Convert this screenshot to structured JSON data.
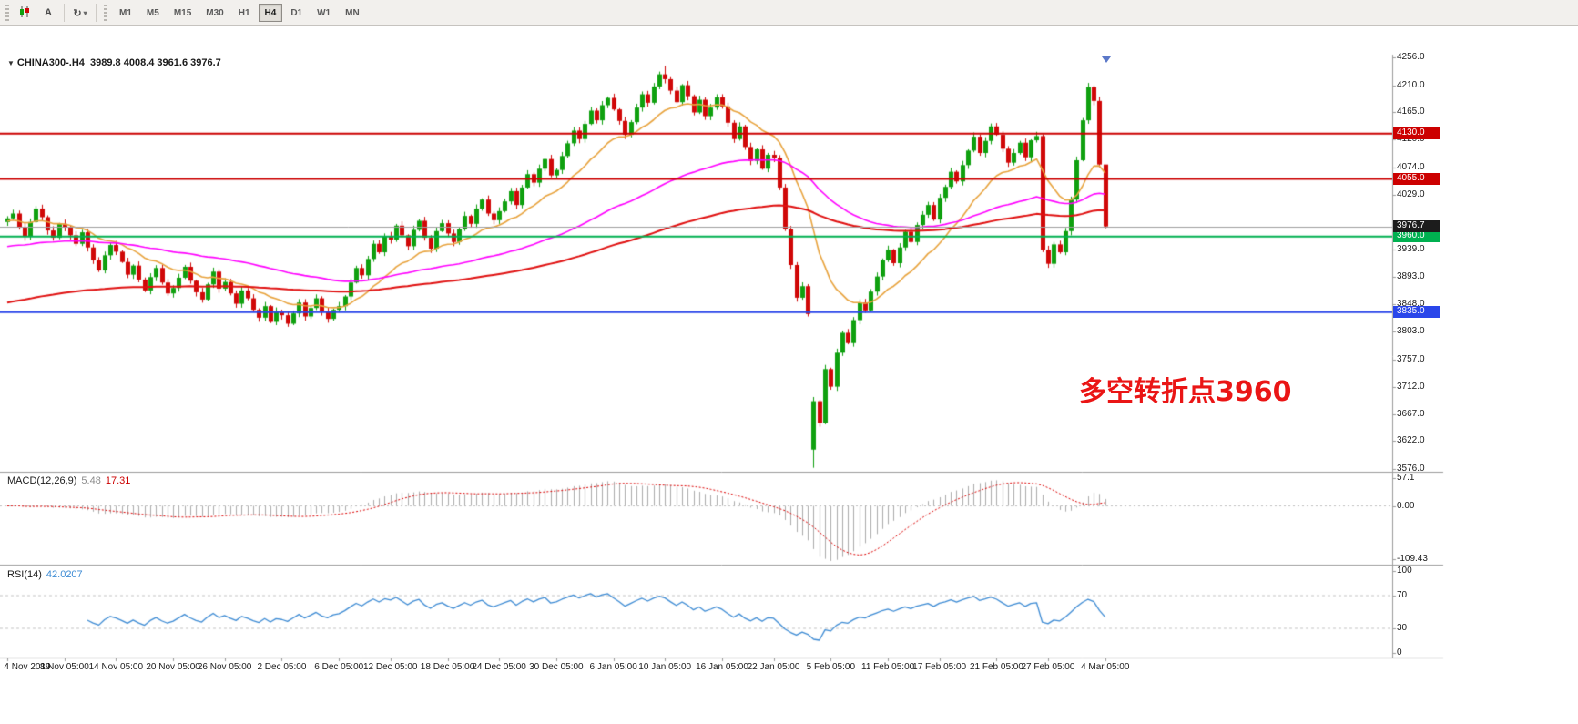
{
  "toolbar": {
    "text_tool_label": "A",
    "timeframes": [
      "M1",
      "M5",
      "M15",
      "M30",
      "H1",
      "H4",
      "D1",
      "W1",
      "MN"
    ],
    "active_timeframe": "H4"
  },
  "chart_data": [
    {
      "type": "candlestick",
      "title_symbol": "CHINA300-.H4",
      "ohlc_readout": "3989.8 4008.4 3961.6 3976.7",
      "timeframe": "H4",
      "ylim": [
        3566,
        4266
      ],
      "y_ticks": [
        "4256.0",
        "4210.0",
        "4165.0",
        "4120.0",
        "4074.0",
        "4029.0",
        "3939.0",
        "3893.0",
        "3848.0",
        "3803.0",
        "3757.0",
        "3712.0",
        "3667.0",
        "3622.0",
        "3576.0"
      ],
      "x_labels": [
        "4 Nov 2019",
        "8 Nov 05:00",
        "14 Nov 05:00",
        "20 Nov 05:00",
        "26 Nov 05:00",
        "2 Dec 05:00",
        "6 Dec 05:00",
        "12 Dec 05:00",
        "18 Dec 05:00",
        "24 Dec 05:00",
        "30 Dec 05:00",
        "6 Jan 05:00",
        "10 Jan 05:00",
        "16 Jan 05:00",
        "22 Jan 05:00",
        "5 Feb 05:00",
        "11 Feb 05:00",
        "17 Feb 05:00",
        "21 Feb 05:00",
        "27 Feb 05:00",
        "4 Mar 05:00"
      ],
      "closes": [
        3990,
        3998,
        3976,
        3960,
        3984,
        4006,
        3992,
        3970,
        3958,
        3981,
        3975,
        3962,
        3948,
        3967,
        3942,
        3921,
        3904,
        3929,
        3946,
        3935,
        3918,
        3897,
        3912,
        3889,
        3871,
        3893,
        3908,
        3884,
        3866,
        3875,
        3892,
        3910,
        3887,
        3868,
        3856,
        3881,
        3902,
        3874,
        3885,
        3866,
        3849,
        3871,
        3858,
        3839,
        3826,
        3845,
        3819,
        3836,
        3830,
        3816,
        3833,
        3851,
        3828,
        3842,
        3858,
        3836,
        3824,
        3839,
        3845,
        3861,
        3884,
        3908,
        3896,
        3923,
        3948,
        3934,
        3961,
        3955,
        3978,
        3962,
        3944,
        3971,
        3986,
        3958,
        3940,
        3969,
        3982,
        3965,
        3951,
        3972,
        3994,
        3981,
        4006,
        4021,
        3998,
        3987,
        4002,
        4018,
        4035,
        4012,
        4041,
        4063,
        4049,
        4072,
        4088,
        4061,
        4070,
        4093,
        4114,
        4135,
        4121,
        4146,
        4168,
        4152,
        4177,
        4189,
        4170,
        4151,
        4128,
        4149,
        4173,
        4195,
        4181,
        4208,
        4228,
        4220,
        4201,
        4182,
        4210,
        4192,
        4165,
        4186,
        4159,
        4173,
        4190,
        4175,
        4148,
        4121,
        4142,
        4108,
        4085,
        4104,
        4072,
        4095,
        4090,
        4041,
        3972,
        3913,
        3859,
        3878,
        3832,
        3688,
        3652,
        3741,
        3712,
        3768,
        3801,
        3784,
        3822,
        3851,
        3838,
        3869,
        3894,
        3921,
        3938,
        3916,
        3942,
        3968,
        3951,
        3979,
        3996,
        4012,
        3988,
        4024,
        4042,
        4067,
        4051,
        4078,
        4102,
        4125,
        4098,
        4118,
        4142,
        4128,
        4105,
        4082,
        4098,
        4115,
        4091,
        4119,
        4126,
        3938,
        3915,
        3947,
        3934,
        3969,
        4021,
        4086,
        4152,
        4207,
        4184,
        4079,
        3976.7
      ],
      "gap_opens": {
        "141": 3608
      },
      "wick_overrides": {
        "115": {
          "high": 4242
        },
        "141": {
          "low": 3578
        },
        "192": {
          "high": 4058
        }
      },
      "up_color": "#0fa00f",
      "down_color": "#d00808",
      "moving_averages": [
        {
          "name": "fast-ma",
          "color": "#e8a33d",
          "period": 16,
          "init": 3985
        },
        {
          "name": "mid-ma",
          "color": "#ff00ff",
          "period": 70,
          "init": 3942
        },
        {
          "name": "slow-ma",
          "color": "#e01010",
          "period": 150,
          "init": 3849
        }
      ],
      "hlines": [
        {
          "price": 4130.0,
          "label": "4130.0",
          "color": "#cc0000"
        },
        {
          "price": 4055.0,
          "label": "4055.0",
          "color": "#cc0000"
        },
        {
          "price": 3960.0,
          "label": "3960.0",
          "color": "#00b050"
        },
        {
          "price": 3835.0,
          "label": "3835.0",
          "color": "#2a46ea"
        }
      ],
      "price_line": {
        "price": 3976.7,
        "label": "3976.7",
        "line_color": "#a0a0a0",
        "tag_bg": "#1c1c1c"
      },
      "annotation": {
        "text": "多空转折点3960",
        "color": "#ea1515"
      }
    },
    {
      "type": "bar",
      "label": "MACD(12,26,9)",
      "values": [
        "5.48",
        "17.31"
      ],
      "y_ticks": [
        "57.1",
        "0.00",
        "-109.43"
      ],
      "ylim": [
        -109.43,
        57.1
      ],
      "params": [
        12,
        26,
        9
      ],
      "histogram_color": "#ababab",
      "signal_color": "#dd0000"
    },
    {
      "type": "line",
      "label": "RSI(14)",
      "value": "42.0207",
      "y_ticks": [
        "100",
        "70",
        "30",
        "0"
      ],
      "levels": [
        70,
        30
      ],
      "ylim": [
        0,
        100
      ],
      "period": 14,
      "line_color": "#3d8bd4"
    }
  ]
}
